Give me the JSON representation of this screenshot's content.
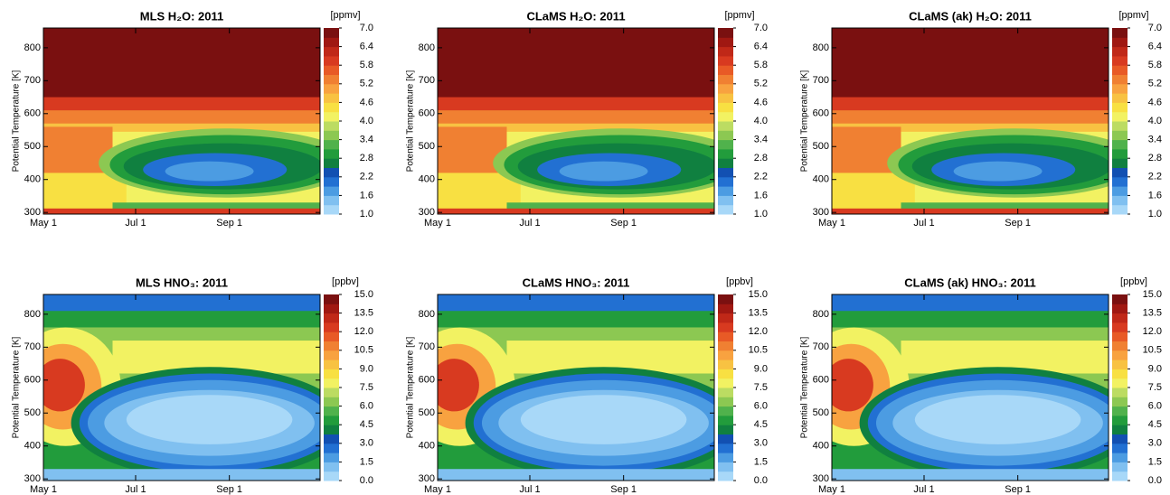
{
  "chart_data": [
    {
      "type": "contour",
      "title": "MLS H₂O: 2011",
      "unit": "[ppmv]",
      "y_label": "Potential Temperature [K]",
      "field": "h2o",
      "xlim": [
        "May 1",
        "Oct 31"
      ],
      "xticks": [
        "May 1",
        "Jul 1",
        "Sep 1"
      ],
      "ylim": [
        295,
        860
      ],
      "yticks": [
        300,
        400,
        500,
        600,
        700,
        800
      ],
      "clim": [
        1,
        7
      ],
      "cticks": [
        {
          "value": 1,
          "label": "1.0"
        },
        {
          "value": 1.6,
          "label": "1.6"
        },
        {
          "value": 2.2,
          "label": "2.2"
        },
        {
          "value": 2.8,
          "label": "2.8"
        },
        {
          "value": 3.4,
          "label": "3.4"
        },
        {
          "value": 4,
          "label": "4.0"
        },
        {
          "value": 4.6,
          "label": "4.6"
        },
        {
          "value": 5.2,
          "label": "5.2"
        },
        {
          "value": 5.8,
          "label": "5.8"
        },
        {
          "value": 6.4,
          "label": "6.4"
        },
        {
          "value": 7,
          "label": "7.0"
        }
      ],
      "colors": [
        "#a8d8f8",
        "#80c0f0",
        "#4c9ce2",
        "#2270d2",
        "#1250b2",
        "#108040",
        "#229c3c",
        "#50b24c",
        "#8cc852",
        "#bcdc62",
        "#f2f262",
        "#f8e042",
        "#f8c242",
        "#f8a240",
        "#f08032",
        "#e85a26",
        "#d83a20",
        "#c02818",
        "#a01812",
        "#7a1010"
      ]
    },
    {
      "type": "contour",
      "title": "CLaMS H₂O: 2011",
      "unit": "[ppmv]",
      "y_label": "Potential Temperature [K]",
      "field": "h2o",
      "xlim": [
        "May 1",
        "Oct 31"
      ],
      "xticks": [
        "May 1",
        "Jul 1",
        "Sep 1"
      ],
      "ylim": [
        295,
        860
      ],
      "yticks": [
        300,
        400,
        500,
        600,
        700,
        800
      ],
      "clim": [
        1,
        7
      ],
      "cticks": [
        {
          "value": 1,
          "label": "1.0"
        },
        {
          "value": 1.6,
          "label": "1.6"
        },
        {
          "value": 2.2,
          "label": "2.2"
        },
        {
          "value": 2.8,
          "label": "2.8"
        },
        {
          "value": 3.4,
          "label": "3.4"
        },
        {
          "value": 4,
          "label": "4.0"
        },
        {
          "value": 4.6,
          "label": "4.6"
        },
        {
          "value": 5.2,
          "label": "5.2"
        },
        {
          "value": 5.8,
          "label": "5.8"
        },
        {
          "value": 6.4,
          "label": "6.4"
        },
        {
          "value": 7,
          "label": "7.0"
        }
      ],
      "colors": [
        "#a8d8f8",
        "#80c0f0",
        "#4c9ce2",
        "#2270d2",
        "#1250b2",
        "#108040",
        "#229c3c",
        "#50b24c",
        "#8cc852",
        "#bcdc62",
        "#f2f262",
        "#f8e042",
        "#f8c242",
        "#f8a240",
        "#f08032",
        "#e85a26",
        "#d83a20",
        "#c02818",
        "#a01812",
        "#7a1010"
      ]
    },
    {
      "type": "contour",
      "title": "CLaMS (ak) H₂O: 2011",
      "unit": "[ppmv]",
      "y_label": "Potential Temperature [K]",
      "field": "h2o",
      "xlim": [
        "May 1",
        "Oct 31"
      ],
      "xticks": [
        "May 1",
        "Jul 1",
        "Sep 1"
      ],
      "ylim": [
        295,
        860
      ],
      "yticks": [
        300,
        400,
        500,
        600,
        700,
        800
      ],
      "clim": [
        1,
        7
      ],
      "cticks": [
        {
          "value": 1,
          "label": "1.0"
        },
        {
          "value": 1.6,
          "label": "1.6"
        },
        {
          "value": 2.2,
          "label": "2.2"
        },
        {
          "value": 2.8,
          "label": "2.8"
        },
        {
          "value": 3.4,
          "label": "3.4"
        },
        {
          "value": 4,
          "label": "4.0"
        },
        {
          "value": 4.6,
          "label": "4.6"
        },
        {
          "value": 5.2,
          "label": "5.2"
        },
        {
          "value": 5.8,
          "label": "5.8"
        },
        {
          "value": 6.4,
          "label": "6.4"
        },
        {
          "value": 7,
          "label": "7.0"
        }
      ],
      "colors": [
        "#a8d8f8",
        "#80c0f0",
        "#4c9ce2",
        "#2270d2",
        "#1250b2",
        "#108040",
        "#229c3c",
        "#50b24c",
        "#8cc852",
        "#bcdc62",
        "#f2f262",
        "#f8e042",
        "#f8c242",
        "#f8a240",
        "#f08032",
        "#e85a26",
        "#d83a20",
        "#c02818",
        "#a01812",
        "#7a1010"
      ]
    },
    {
      "type": "contour",
      "title": "MLS HNO₃: 2011",
      "unit": "[ppbv]",
      "y_label": "Potential Temperature [K]",
      "field": "hno3",
      "xlim": [
        "May 1",
        "Oct 31"
      ],
      "xticks": [
        "May 1",
        "Jul 1",
        "Sep 1"
      ],
      "ylim": [
        295,
        860
      ],
      "yticks": [
        300,
        400,
        500,
        600,
        700,
        800
      ],
      "clim": [
        0,
        15
      ],
      "cticks": [
        {
          "value": 0,
          "label": "0.0"
        },
        {
          "value": 1.5,
          "label": "1.5"
        },
        {
          "value": 3,
          "label": "3.0"
        },
        {
          "value": 4.5,
          "label": "4.5"
        },
        {
          "value": 6,
          "label": "6.0"
        },
        {
          "value": 7.5,
          "label": "7.5"
        },
        {
          "value": 9,
          "label": "9.0"
        },
        {
          "value": 10.5,
          "label": "10.5"
        },
        {
          "value": 12,
          "label": "12.0"
        },
        {
          "value": 13.5,
          "label": "13.5"
        },
        {
          "value": 15,
          "label": "15.0"
        }
      ],
      "colors": [
        "#a8d8f8",
        "#80c0f0",
        "#4c9ce2",
        "#2270d2",
        "#1250b2",
        "#108040",
        "#229c3c",
        "#50b24c",
        "#8cc852",
        "#bcdc62",
        "#f2f262",
        "#f8e042",
        "#f8c242",
        "#f8a240",
        "#f08032",
        "#e85a26",
        "#d83a20",
        "#c02818",
        "#a01812",
        "#7a1010"
      ]
    },
    {
      "type": "contour",
      "title": "CLaMS HNO₃: 2011",
      "unit": "[ppbv]",
      "y_label": "Potential Temperature [K]",
      "field": "hno3",
      "xlim": [
        "May 1",
        "Oct 31"
      ],
      "xticks": [
        "May 1",
        "Jul 1",
        "Sep 1"
      ],
      "ylim": [
        295,
        860
      ],
      "yticks": [
        300,
        400,
        500,
        600,
        700,
        800
      ],
      "clim": [
        0,
        15
      ],
      "cticks": [
        {
          "value": 0,
          "label": "0.0"
        },
        {
          "value": 1.5,
          "label": "1.5"
        },
        {
          "value": 3,
          "label": "3.0"
        },
        {
          "value": 4.5,
          "label": "4.5"
        },
        {
          "value": 6,
          "label": "6.0"
        },
        {
          "value": 7.5,
          "label": "7.5"
        },
        {
          "value": 9,
          "label": "9.0"
        },
        {
          "value": 10.5,
          "label": "10.5"
        },
        {
          "value": 12,
          "label": "12.0"
        },
        {
          "value": 13.5,
          "label": "13.5"
        },
        {
          "value": 15,
          "label": "15.0"
        }
      ],
      "colors": [
        "#a8d8f8",
        "#80c0f0",
        "#4c9ce2",
        "#2270d2",
        "#1250b2",
        "#108040",
        "#229c3c",
        "#50b24c",
        "#8cc852",
        "#bcdc62",
        "#f2f262",
        "#f8e042",
        "#f8c242",
        "#f8a240",
        "#f08032",
        "#e85a26",
        "#d83a20",
        "#c02818",
        "#a01812",
        "#7a1010"
      ]
    },
    {
      "type": "contour",
      "title": "CLaMS (ak) HNO₃: 2011",
      "unit": "[ppbv]",
      "y_label": "Potential Temperature [K]",
      "field": "hno3",
      "xlim": [
        "May 1",
        "Oct 31"
      ],
      "xticks": [
        "May 1",
        "Jul 1",
        "Sep 1"
      ],
      "ylim": [
        295,
        860
      ],
      "yticks": [
        300,
        400,
        500,
        600,
        700,
        800
      ],
      "clim": [
        0,
        15
      ],
      "cticks": [
        {
          "value": 0,
          "label": "0.0"
        },
        {
          "value": 1.5,
          "label": "1.5"
        },
        {
          "value": 3,
          "label": "3.0"
        },
        {
          "value": 4.5,
          "label": "4.5"
        },
        {
          "value": 6,
          "label": "6.0"
        },
        {
          "value": 7.5,
          "label": "7.5"
        },
        {
          "value": 9,
          "label": "9.0"
        },
        {
          "value": 10.5,
          "label": "10.5"
        },
        {
          "value": 12,
          "label": "12.0"
        },
        {
          "value": 13.5,
          "label": "13.5"
        },
        {
          "value": 15,
          "label": "15.0"
        }
      ],
      "colors": [
        "#a8d8f8",
        "#80c0f0",
        "#4c9ce2",
        "#2270d2",
        "#1250b2",
        "#108040",
        "#229c3c",
        "#50b24c",
        "#8cc852",
        "#bcdc62",
        "#f2f262",
        "#f8e042",
        "#f8c242",
        "#f8a240",
        "#f08032",
        "#e85a26",
        "#d83a20",
        "#c02818",
        "#a01812",
        "#7a1010"
      ]
    }
  ]
}
